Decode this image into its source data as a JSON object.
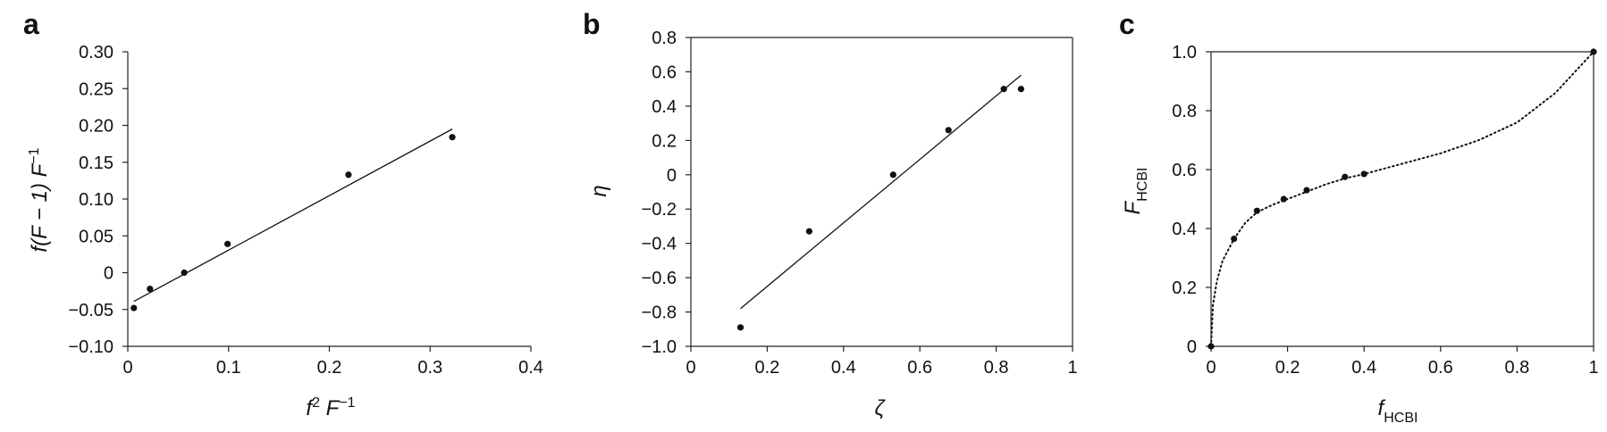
{
  "panels": [
    {
      "letter": "a"
    },
    {
      "letter": "b"
    },
    {
      "letter": "c"
    }
  ],
  "chart_data": [
    {
      "type": "scatter",
      "panel": "a",
      "xlabel": "f2 F−1",
      "xlabel_parts": {
        "base1": "f",
        "sup1": "2",
        "base2": " F",
        "sup2": "−1"
      },
      "ylabel": "f(F − 1) F−1",
      "ylabel_parts": {
        "base": "f(F − 1) F",
        "sup": "−1"
      },
      "xlim": [
        0,
        0.4
      ],
      "ylim": [
        -0.1,
        0.3
      ],
      "xticks": [
        {
          "v": 0,
          "label": "0"
        },
        {
          "v": 0.1,
          "label": "0.1"
        },
        {
          "v": 0.2,
          "label": "0.2"
        },
        {
          "v": 0.3,
          "label": "0.3"
        },
        {
          "v": 0.4,
          "label": "0.4"
        }
      ],
      "yticks": [
        {
          "v": -0.1,
          "label": "−0.10"
        },
        {
          "v": -0.05,
          "label": "−0.05"
        },
        {
          "v": 0,
          "label": "0"
        },
        {
          "v": 0.05,
          "label": "0.05"
        },
        {
          "v": 0.1,
          "label": "0.10"
        },
        {
          "v": 0.15,
          "label": "0.15"
        },
        {
          "v": 0.2,
          "label": "0.20"
        },
        {
          "v": 0.25,
          "label": "0.25"
        },
        {
          "v": 0.3,
          "label": "0.30"
        }
      ],
      "points": [
        {
          "x": 0.006,
          "y": -0.048
        },
        {
          "x": 0.022,
          "y": -0.022
        },
        {
          "x": 0.056,
          "y": 0.0
        },
        {
          "x": 0.099,
          "y": 0.039
        },
        {
          "x": 0.219,
          "y": 0.133
        },
        {
          "x": 0.322,
          "y": 0.184
        }
      ],
      "fit_line": {
        "x1": 0.006,
        "y1": -0.039,
        "x2": 0.322,
        "y2": 0.195
      }
    },
    {
      "type": "scatter",
      "panel": "b",
      "xlabel": "ζ",
      "ylabel": "η",
      "xlim": [
        0,
        1
      ],
      "ylim": [
        -1.0,
        0.8
      ],
      "xticks": [
        {
          "v": 0,
          "label": "0"
        },
        {
          "v": 0.2,
          "label": "0.2"
        },
        {
          "v": 0.4,
          "label": "0.4"
        },
        {
          "v": 0.6,
          "label": "0.6"
        },
        {
          "v": 0.8,
          "label": "0.8"
        },
        {
          "v": 1,
          "label": "1"
        }
      ],
      "yticks": [
        {
          "v": -1.0,
          "label": "−1.0"
        },
        {
          "v": -0.8,
          "label": "−0.8"
        },
        {
          "v": -0.6,
          "label": "−0.6"
        },
        {
          "v": -0.4,
          "label": "−0.4"
        },
        {
          "v": -0.2,
          "label": "−0.2"
        },
        {
          "v": 0,
          "label": "0"
        },
        {
          "v": 0.2,
          "label": "0.2"
        },
        {
          "v": 0.4,
          "label": "0.4"
        },
        {
          "v": 0.6,
          "label": "0.6"
        },
        {
          "v": 0.8,
          "label": "0.8"
        }
      ],
      "points": [
        {
          "x": 0.13,
          "y": -0.89
        },
        {
          "x": 0.31,
          "y": -0.33
        },
        {
          "x": 0.53,
          "y": 0.0
        },
        {
          "x": 0.675,
          "y": 0.26
        },
        {
          "x": 0.82,
          "y": 0.5
        },
        {
          "x": 0.865,
          "y": 0.5
        }
      ],
      "fit_line": {
        "x1": 0.13,
        "y1": -0.78,
        "x2": 0.865,
        "y2": 0.58
      }
    },
    {
      "type": "scatter",
      "panel": "c",
      "xlabel": "fHCBI",
      "xlabel_parts": {
        "base": "f",
        "sub": "HCBI"
      },
      "ylabel": "FHCBI",
      "ylabel_parts": {
        "base": "F",
        "sub": "HCBI"
      },
      "xlim": [
        0,
        1
      ],
      "ylim": [
        0,
        1.0
      ],
      "xticks": [
        {
          "v": 0,
          "label": "0"
        },
        {
          "v": 0.2,
          "label": "0.2"
        },
        {
          "v": 0.4,
          "label": "0.4"
        },
        {
          "v": 0.6,
          "label": "0.6"
        },
        {
          "v": 0.8,
          "label": "0.8"
        },
        {
          "v": 1,
          "label": "1"
        }
      ],
      "yticks": [
        {
          "v": 0,
          "label": "0"
        },
        {
          "v": 0.2,
          "label": "0.2"
        },
        {
          "v": 0.4,
          "label": "0.4"
        },
        {
          "v": 0.6,
          "label": "0.6"
        },
        {
          "v": 0.8,
          "label": "0.8"
        },
        {
          "v": 1.0,
          "label": "1.0"
        }
      ],
      "points": [
        {
          "x": 0.0,
          "y": 0.0
        },
        {
          "x": 0.06,
          "y": 0.365
        },
        {
          "x": 0.12,
          "y": 0.46
        },
        {
          "x": 0.19,
          "y": 0.5
        },
        {
          "x": 0.25,
          "y": 0.53
        },
        {
          "x": 0.35,
          "y": 0.575
        },
        {
          "x": 0.4,
          "y": 0.585
        },
        {
          "x": 1.0,
          "y": 1.0
        }
      ],
      "dotted_curve": [
        {
          "x": 0.0,
          "y": 0.0
        },
        {
          "x": 0.005,
          "y": 0.14
        },
        {
          "x": 0.015,
          "y": 0.22
        },
        {
          "x": 0.03,
          "y": 0.29
        },
        {
          "x": 0.06,
          "y": 0.365
        },
        {
          "x": 0.09,
          "y": 0.42
        },
        {
          "x": 0.12,
          "y": 0.455
        },
        {
          "x": 0.16,
          "y": 0.48
        },
        {
          "x": 0.2,
          "y": 0.5
        },
        {
          "x": 0.25,
          "y": 0.525
        },
        {
          "x": 0.3,
          "y": 0.55
        },
        {
          "x": 0.35,
          "y": 0.57
        },
        {
          "x": 0.4,
          "y": 0.585
        },
        {
          "x": 0.5,
          "y": 0.62
        },
        {
          "x": 0.6,
          "y": 0.655
        },
        {
          "x": 0.7,
          "y": 0.7
        },
        {
          "x": 0.8,
          "y": 0.76
        },
        {
          "x": 0.9,
          "y": 0.86
        },
        {
          "x": 0.95,
          "y": 0.93
        },
        {
          "x": 1.0,
          "y": 1.0
        }
      ]
    }
  ]
}
